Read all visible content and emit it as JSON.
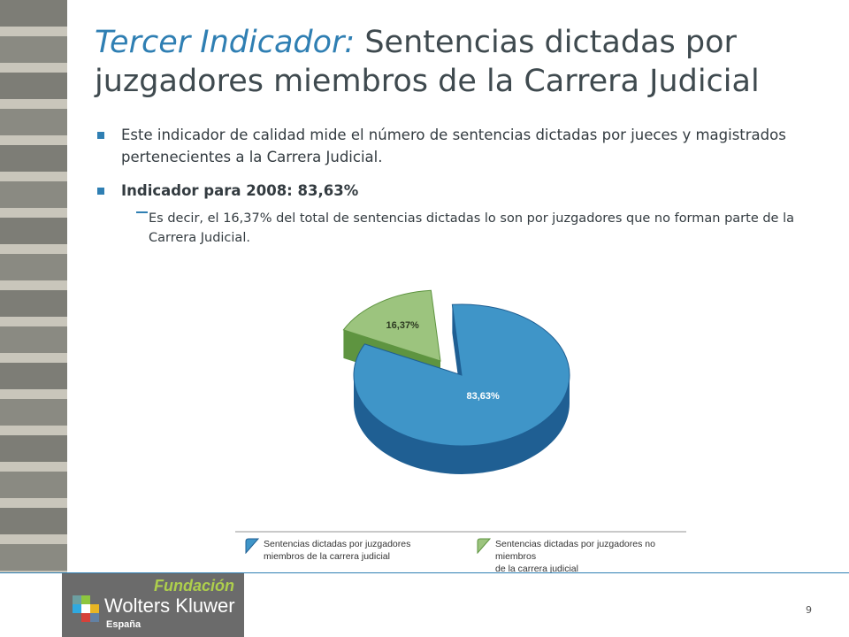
{
  "title": {
    "accent": "Tercer Indicador:",
    "main": " Sentencias dictadas por juzgadores miembros de la Carrera Judicial"
  },
  "bullets": {
    "b1": "Este indicador de calidad mide el número de sentencias dictadas por jueces y magistrados pertenecientes a la Carrera Judicial.",
    "b2": "Indicador para 2008: 83,63%",
    "b2_sub": "Es decir, el 16,37% del total de sentencias dictadas lo son por juzgadores que no forman parte de la Carrera Judicial."
  },
  "chart_data": {
    "type": "pie",
    "style": "3d-exploded",
    "slices": [
      {
        "label": "Sentencias dictadas por juzgadores miembros de la carrera judicial",
        "value": 83.63,
        "display": "83,63%",
        "color": "#3f95c8",
        "side_color": "#1f5f93"
      },
      {
        "label": "Sentencias dictadas por juzgadores no miembros de la carrera judicial",
        "value": 16.37,
        "display": "16,37%",
        "color": "#9cc47e",
        "side_color": "#5e9440"
      }
    ],
    "legend": {
      "position": "bottom",
      "entries": [
        {
          "lines": [
            "Sentencias dictadas por juzgadores",
            "miembros de la carrera judicial"
          ],
          "color": "#3f95c8"
        },
        {
          "lines": [
            "Sentencias dictadas por juzgadores no miembros",
            "de la carrera judicial"
          ],
          "color": "#9cc47e"
        }
      ]
    }
  },
  "footer": {
    "logo_fundacion": "Fundación",
    "logo_brand": "Wolters Kluwer",
    "logo_country": "España",
    "page_number": "9"
  }
}
